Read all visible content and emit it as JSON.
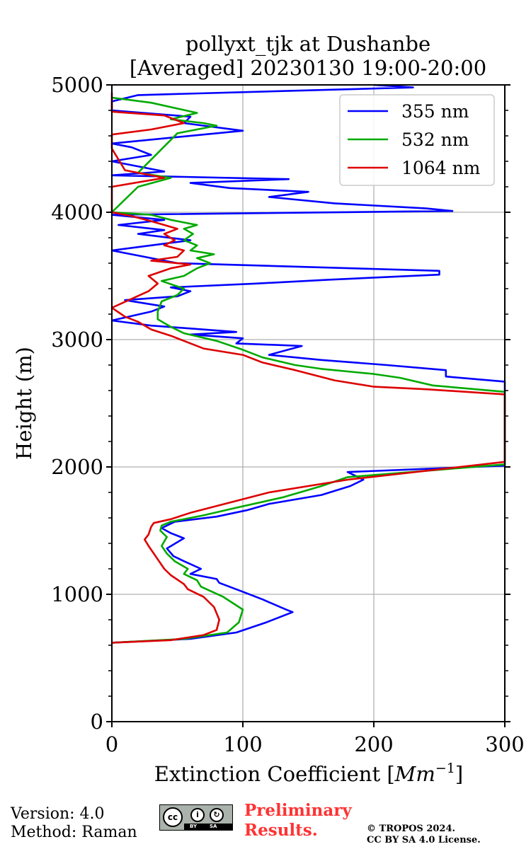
{
  "chart_data": {
    "type": "line",
    "title_line1": "pollyxt_tjk at Dushanbe",
    "title_line2": "[Averaged] 20230130 19:00-20:00",
    "xlabel": "Extinction Coefficient [",
    "xlabel_unit": "Mm",
    "xlabel_exp": "−1",
    "xlabel_close": "]",
    "ylabel": "Height (m)",
    "xlim": [
      0,
      300
    ],
    "ylim": [
      0,
      5000
    ],
    "x_ticks": [
      "0",
      "100",
      "200",
      "300"
    ],
    "y_ticks": [
      "0",
      "1000",
      "2000",
      "3000",
      "4000",
      "5000"
    ],
    "grid": true,
    "legend_position": "top-right",
    "series": [
      {
        "name": "355 nm",
        "color": "#0000ff",
        "points": [
          [
            0,
            620
          ],
          [
            60,
            650
          ],
          [
            95,
            700
          ],
          [
            118,
            780
          ],
          [
            138,
            860
          ],
          [
            133,
            880
          ],
          [
            115,
            960
          ],
          [
            100,
            1020
          ],
          [
            82,
            1090
          ],
          [
            80,
            1120
          ],
          [
            60,
            1160
          ],
          [
            68,
            1200
          ],
          [
            55,
            1260
          ],
          [
            47,
            1300
          ],
          [
            42,
            1360
          ],
          [
            55,
            1440
          ],
          [
            45,
            1480
          ],
          [
            38,
            1520
          ],
          [
            48,
            1570
          ],
          [
            80,
            1610
          ],
          [
            103,
            1660
          ],
          [
            120,
            1710
          ],
          [
            160,
            1780
          ],
          [
            182,
            1850
          ],
          [
            192,
            1900
          ],
          [
            180,
            1960
          ],
          [
            300,
            2010
          ],
          [
            300,
            2670
          ],
          [
            255,
            2710
          ],
          [
            255,
            2760
          ],
          [
            210,
            2800
          ],
          [
            160,
            2840
          ],
          [
            120,
            2880
          ],
          [
            145,
            2950
          ],
          [
            95,
            2970
          ],
          [
            100,
            3010
          ],
          [
            60,
            3040
          ],
          [
            95,
            3060
          ],
          [
            30,
            3110
          ],
          [
            0,
            3150
          ],
          [
            30,
            3220
          ],
          [
            40,
            3260
          ],
          [
            10,
            3310
          ],
          [
            50,
            3340
          ],
          [
            60,
            3380
          ],
          [
            45,
            3410
          ],
          [
            110,
            3440
          ],
          [
            165,
            3470
          ],
          [
            250,
            3510
          ],
          [
            250,
            3540
          ],
          [
            50,
            3600
          ],
          [
            0,
            3700
          ],
          [
            30,
            3740
          ],
          [
            60,
            3780
          ],
          [
            20,
            3830
          ],
          [
            40,
            3860
          ],
          [
            5,
            3900
          ],
          [
            40,
            3940
          ],
          [
            0,
            3980
          ],
          [
            260,
            4010
          ],
          [
            240,
            4030
          ],
          [
            170,
            4070
          ],
          [
            120,
            4120
          ],
          [
            150,
            4160
          ],
          [
            90,
            4190
          ],
          [
            60,
            4230
          ],
          [
            135,
            4260
          ],
          [
            0,
            4290
          ],
          [
            40,
            4320
          ],
          [
            0,
            4400
          ],
          [
            30,
            4450
          ],
          [
            15,
            4510
          ],
          [
            0,
            4540
          ],
          [
            100,
            4640
          ],
          [
            55,
            4700
          ],
          [
            60,
            4750
          ],
          [
            0,
            4800
          ],
          [
            0,
            4870
          ],
          [
            20,
            4920
          ],
          [
            230,
            4980
          ],
          [
            200,
            5000
          ]
        ]
      },
      {
        "name": "532 nm",
        "color": "#00aa00",
        "points": [
          [
            0,
            620
          ],
          [
            55,
            650
          ],
          [
            88,
            700
          ],
          [
            97,
            780
          ],
          [
            100,
            880
          ],
          [
            85,
            980
          ],
          [
            68,
            1060
          ],
          [
            65,
            1110
          ],
          [
            55,
            1160
          ],
          [
            58,
            1200
          ],
          [
            48,
            1260
          ],
          [
            42,
            1320
          ],
          [
            38,
            1380
          ],
          [
            42,
            1450
          ],
          [
            37,
            1500
          ],
          [
            38,
            1540
          ],
          [
            45,
            1570
          ],
          [
            70,
            1620
          ],
          [
            95,
            1680
          ],
          [
            130,
            1760
          ],
          [
            160,
            1850
          ],
          [
            180,
            1920
          ],
          [
            300,
            2020
          ],
          [
            300,
            2590
          ],
          [
            245,
            2640
          ],
          [
            220,
            2700
          ],
          [
            200,
            2730
          ],
          [
            160,
            2770
          ],
          [
            140,
            2800
          ],
          [
            115,
            2860
          ],
          [
            100,
            2920
          ],
          [
            80,
            2990
          ],
          [
            55,
            3050
          ],
          [
            45,
            3100
          ],
          [
            35,
            3160
          ],
          [
            35,
            3220
          ],
          [
            38,
            3300
          ],
          [
            50,
            3350
          ],
          [
            55,
            3400
          ],
          [
            38,
            3460
          ],
          [
            55,
            3500
          ],
          [
            65,
            3560
          ],
          [
            75,
            3600
          ],
          [
            65,
            3640
          ],
          [
            78,
            3670
          ],
          [
            60,
            3700
          ],
          [
            65,
            3740
          ],
          [
            55,
            3780
          ],
          [
            62,
            3830
          ],
          [
            55,
            3870
          ],
          [
            65,
            3900
          ],
          [
            45,
            3940
          ],
          [
            30,
            3980
          ],
          [
            0,
            4000
          ],
          [
            20,
            4200
          ],
          [
            45,
            4270
          ],
          [
            20,
            4310
          ],
          [
            50,
            4620
          ],
          [
            80,
            4680
          ],
          [
            70,
            4700
          ],
          [
            45,
            4730
          ],
          [
            65,
            4780
          ],
          [
            30,
            4860
          ],
          [
            0,
            4900
          ]
        ]
      },
      {
        "name": "1064 nm",
        "color": "#dd0000",
        "points": [
          [
            0,
            620
          ],
          [
            45,
            640
          ],
          [
            70,
            680
          ],
          [
            80,
            720
          ],
          [
            82,
            800
          ],
          [
            78,
            900
          ],
          [
            70,
            980
          ],
          [
            58,
            1040
          ],
          [
            55,
            1080
          ],
          [
            45,
            1150
          ],
          [
            40,
            1200
          ],
          [
            36,
            1260
          ],
          [
            32,
            1320
          ],
          [
            28,
            1380
          ],
          [
            25,
            1430
          ],
          [
            28,
            1470
          ],
          [
            30,
            1530
          ],
          [
            32,
            1560
          ],
          [
            45,
            1590
          ],
          [
            60,
            1640
          ],
          [
            90,
            1720
          ],
          [
            120,
            1800
          ],
          [
            180,
            1900
          ],
          [
            300,
            2040
          ],
          [
            300,
            2570
          ],
          [
            240,
            2610
          ],
          [
            200,
            2630
          ],
          [
            170,
            2680
          ],
          [
            140,
            2760
          ],
          [
            115,
            2820
          ],
          [
            100,
            2880
          ],
          [
            70,
            2930
          ],
          [
            55,
            2990
          ],
          [
            45,
            3030
          ],
          [
            30,
            3080
          ],
          [
            20,
            3140
          ],
          [
            10,
            3180
          ],
          [
            0,
            3250
          ],
          [
            15,
            3320
          ],
          [
            28,
            3380
          ],
          [
            35,
            3440
          ],
          [
            28,
            3500
          ],
          [
            45,
            3560
          ],
          [
            60,
            3590
          ],
          [
            30,
            3620
          ],
          [
            50,
            3650
          ],
          [
            55,
            3700
          ],
          [
            40,
            3740
          ],
          [
            48,
            3780
          ],
          [
            40,
            3830
          ],
          [
            50,
            3870
          ],
          [
            30,
            3930
          ],
          [
            15,
            3970
          ],
          [
            0,
            4000
          ],
          [
            0,
            4200
          ],
          [
            40,
            4270
          ],
          [
            10,
            4330
          ],
          [
            0,
            4500
          ],
          [
            0,
            4610
          ],
          [
            30,
            4650
          ],
          [
            55,
            4700
          ],
          [
            40,
            4760
          ],
          [
            0,
            4790
          ],
          [
            0,
            4870
          ],
          [
            0,
            4940
          ]
        ]
      }
    ]
  },
  "footer": {
    "version": "Version: 4.0",
    "method": "Method: Raman",
    "preliminary_line1": "Preliminary",
    "preliminary_line2": "Results.",
    "copyright_line1": "© TROPOS 2024.",
    "copyright_line2": "CC BY SA 4.0 License.",
    "license_badge": {
      "cc": "cc",
      "by": "BY",
      "sa": "SA",
      "icons": [
        "cc-logo-icon",
        "by-attribution-icon",
        "sa-share-alike-icon"
      ]
    }
  }
}
